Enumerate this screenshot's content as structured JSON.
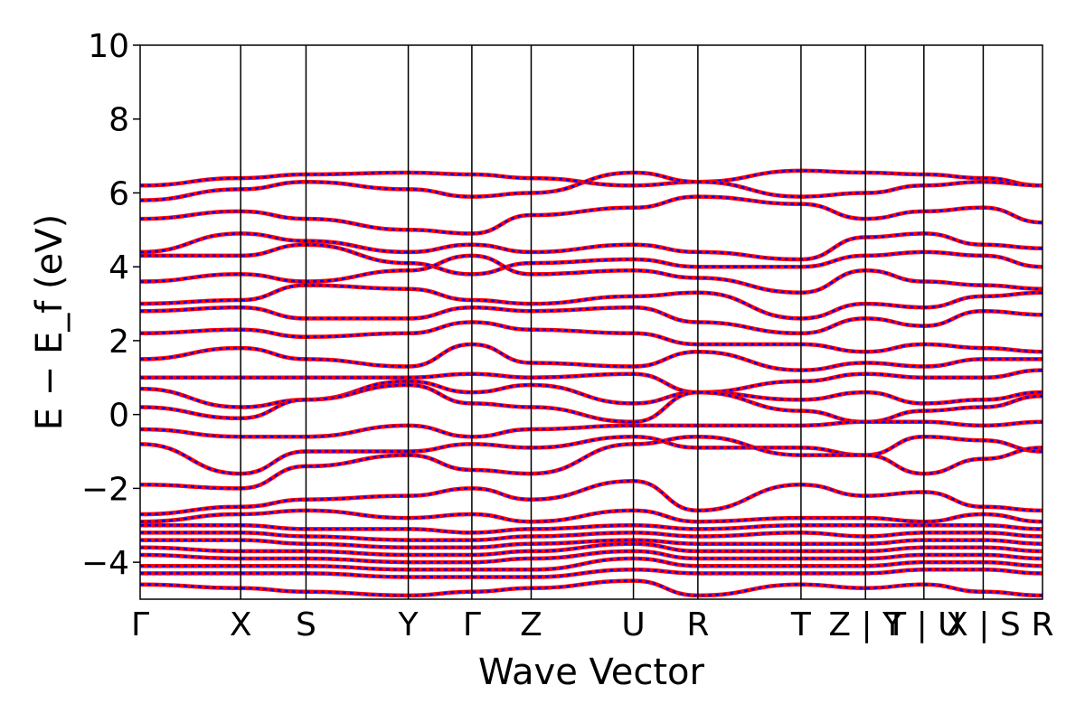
{
  "chart_data": {
    "type": "line",
    "title": "",
    "xlabel": "Wave Vector",
    "ylabel": "E − E_f (eV)",
    "ylim": [
      -5,
      10
    ],
    "yticks": [
      -4,
      -2,
      0,
      2,
      4,
      6,
      8,
      10
    ],
    "ytick_labels": [
      "−4",
      "−2",
      "0",
      "2",
      "4",
      "6",
      "8",
      "10"
    ],
    "grid": false,
    "legend": "none",
    "x_range": [
      0,
      10.5
    ],
    "kpoints": [
      {
        "label": "Γ",
        "x": 0.0
      },
      {
        "label": "X",
        "x": 1.17
      },
      {
        "label": "S",
        "x": 1.93
      },
      {
        "label": "Y",
        "x": 3.12
      },
      {
        "label": "Γ",
        "x": 3.86
      },
      {
        "label": "Z",
        "x": 4.55
      },
      {
        "label": "U",
        "x": 5.74
      },
      {
        "label": "R",
        "x": 6.49
      },
      {
        "label": "T",
        "x": 7.69
      },
      {
        "label": "Z | Y",
        "x": 8.44
      },
      {
        "label": "T | U",
        "x": 9.12
      },
      {
        "label": "X | S",
        "x": 9.81
      },
      {
        "label": "R",
        "x": 10.5
      }
    ],
    "series_colors": {
      "solid": "#ff0000",
      "dashed": "#0000ff"
    },
    "series": [
      {
        "values": [
          6.2,
          6.4,
          6.5,
          6.55,
          6.5,
          6.4,
          6.2,
          6.3,
          6.6,
          6.55,
          6.5,
          6.4,
          6.2
        ]
      },
      {
        "values": [
          5.8,
          6.1,
          6.3,
          6.1,
          5.9,
          6.0,
          6.55,
          6.3,
          5.9,
          6.0,
          6.2,
          6.3,
          6.2
        ]
      },
      {
        "values": [
          5.3,
          5.5,
          5.3,
          5.0,
          4.9,
          5.4,
          5.6,
          5.9,
          5.7,
          5.3,
          5.5,
          5.6,
          5.2
        ]
      },
      {
        "values": [
          4.4,
          4.9,
          4.7,
          4.4,
          4.6,
          4.4,
          4.6,
          4.4,
          4.2,
          4.8,
          4.9,
          4.6,
          4.5
        ]
      },
      {
        "values": [
          4.3,
          4.3,
          4.6,
          4.1,
          3.8,
          4.1,
          4.2,
          4.0,
          4.0,
          4.3,
          4.4,
          4.3,
          4.0
        ]
      },
      {
        "values": [
          3.6,
          3.8,
          3.6,
          3.9,
          4.3,
          3.8,
          3.9,
          3.7,
          3.3,
          3.9,
          3.6,
          3.5,
          3.4
        ]
      },
      {
        "values": [
          3.0,
          3.1,
          3.5,
          3.4,
          3.1,
          3.0,
          3.2,
          3.3,
          2.6,
          3.0,
          2.9,
          3.2,
          3.3
        ]
      },
      {
        "values": [
          2.8,
          2.9,
          2.6,
          2.6,
          2.9,
          2.8,
          2.9,
          2.5,
          2.2,
          2.6,
          2.4,
          2.8,
          2.7
        ]
      },
      {
        "values": [
          2.2,
          2.3,
          2.1,
          2.2,
          2.5,
          2.3,
          2.2,
          1.9,
          1.9,
          1.7,
          1.9,
          1.8,
          1.7
        ]
      },
      {
        "values": [
          1.5,
          1.8,
          1.5,
          1.3,
          1.9,
          1.4,
          1.3,
          1.7,
          1.2,
          1.4,
          1.3,
          1.5,
          1.5
        ]
      },
      {
        "values": [
          1.0,
          1.0,
          1.0,
          1.0,
          1.1,
          1.0,
          1.1,
          0.6,
          0.9,
          1.1,
          1.0,
          1.0,
          1.2
        ]
      },
      {
        "values": [
          0.7,
          0.2,
          0.4,
          0.9,
          0.6,
          0.8,
          0.3,
          0.6,
          0.4,
          0.6,
          0.3,
          0.4,
          0.6
        ]
      },
      {
        "values": [
          0.2,
          -0.1,
          0.4,
          0.8,
          0.3,
          0.2,
          -0.2,
          0.6,
          0.1,
          -0.2,
          0.1,
          0.2,
          0.5
        ]
      },
      {
        "values": [
          -0.4,
          -0.6,
          -0.6,
          -0.3,
          -0.6,
          -0.4,
          -0.3,
          -0.3,
          -0.3,
          -0.2,
          -0.2,
          -0.3,
          -0.2
        ]
      },
      {
        "values": [
          -0.8,
          -1.6,
          -1.0,
          -1.0,
          -0.8,
          -0.9,
          -0.6,
          -0.9,
          -0.9,
          -1.1,
          -0.6,
          -0.7,
          -1.0
        ]
      },
      {
        "values": [
          -1.9,
          -2.0,
          -1.4,
          -1.1,
          -1.5,
          -1.6,
          -0.8,
          -0.6,
          -1.1,
          -1.1,
          -1.6,
          -1.2,
          -0.9
        ]
      },
      {
        "values": [
          -2.7,
          -2.5,
          -2.3,
          -2.2,
          -2.0,
          -2.3,
          -1.8,
          -2.6,
          -1.9,
          -2.2,
          -2.1,
          -2.5,
          -2.6
        ]
      },
      {
        "values": [
          -2.9,
          -2.7,
          -2.6,
          -2.8,
          -2.7,
          -2.9,
          -2.6,
          -2.9,
          -2.8,
          -2.8,
          -2.9,
          -2.7,
          -2.9
        ]
      },
      {
        "values": [
          -3.0,
          -3.0,
          -3.1,
          -3.1,
          -3.2,
          -3.1,
          -3.0,
          -3.1,
          -3.0,
          -3.0,
          -3.0,
          -3.0,
          -3.1
        ]
      },
      {
        "values": [
          -3.2,
          -3.2,
          -3.3,
          -3.4,
          -3.4,
          -3.3,
          -3.2,
          -3.3,
          -3.2,
          -3.3,
          -3.2,
          -3.2,
          -3.3
        ]
      },
      {
        "values": [
          -3.4,
          -3.4,
          -3.5,
          -3.6,
          -3.6,
          -3.5,
          -3.4,
          -3.5,
          -3.5,
          -3.5,
          -3.4,
          -3.4,
          -3.5
        ]
      },
      {
        "values": [
          -3.6,
          -3.7,
          -3.7,
          -3.8,
          -3.8,
          -3.7,
          -3.5,
          -3.7,
          -3.7,
          -3.7,
          -3.6,
          -3.6,
          -3.7
        ]
      },
      {
        "values": [
          -3.8,
          -3.9,
          -3.9,
          -4.0,
          -4.0,
          -3.9,
          -3.7,
          -3.9,
          -3.9,
          -3.9,
          -3.8,
          -3.8,
          -3.9
        ]
      },
      {
        "values": [
          -4.1,
          -4.1,
          -4.1,
          -4.2,
          -4.2,
          -4.2,
          -3.9,
          -4.1,
          -4.1,
          -4.1,
          -4.0,
          -4.0,
          -4.1
        ]
      },
      {
        "values": [
          -4.3,
          -4.3,
          -4.3,
          -4.4,
          -4.4,
          -4.4,
          -4.2,
          -4.3,
          -4.3,
          -4.3,
          -4.2,
          -4.2,
          -4.3
        ]
      },
      {
        "values": [
          -4.6,
          -4.7,
          -4.8,
          -4.9,
          -4.8,
          -4.7,
          -4.5,
          -4.9,
          -4.6,
          -4.7,
          -4.6,
          -4.8,
          -4.9
        ]
      }
    ]
  }
}
